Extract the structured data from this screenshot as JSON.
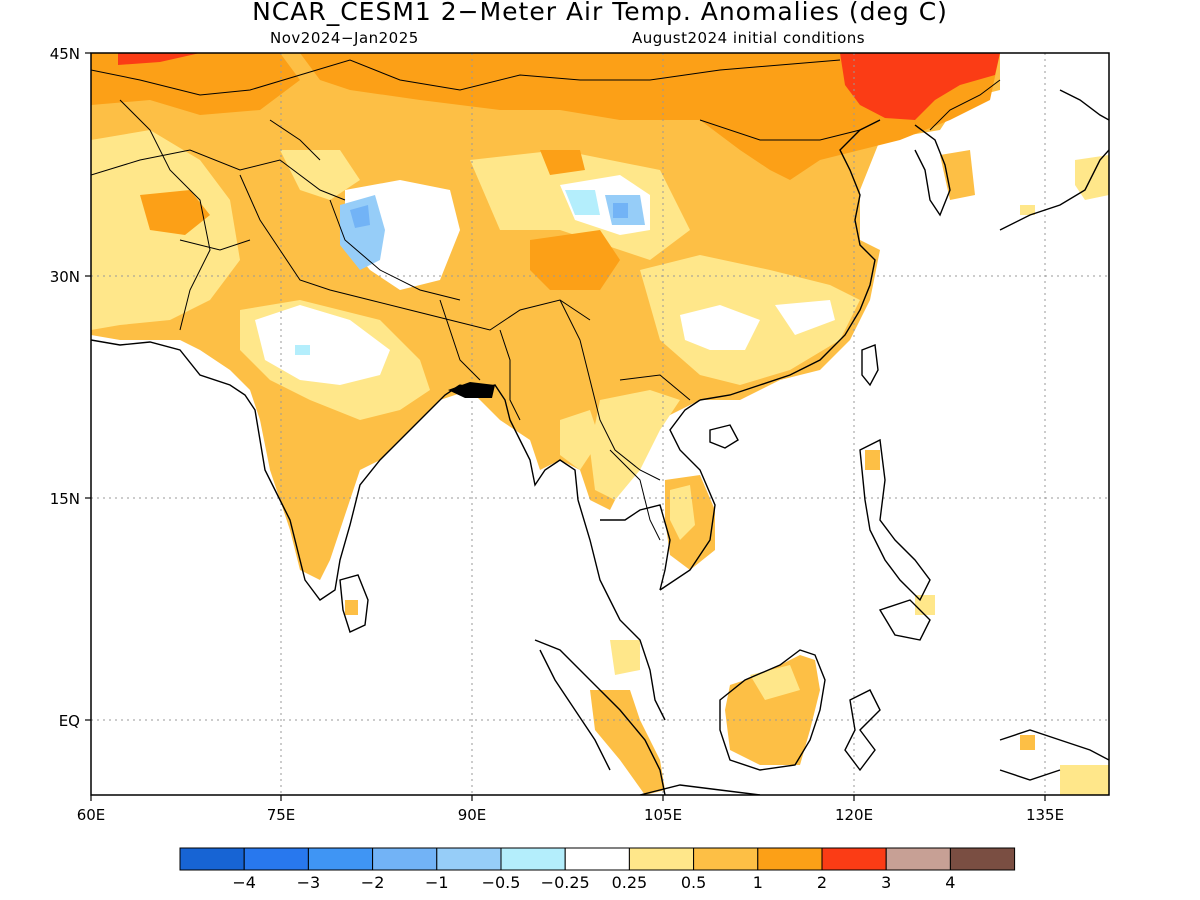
{
  "title": "NCAR_CESM1 2−Meter Air Temp. Anomalies (deg C)",
  "subtitle_left": "Nov2024−Jan2025",
  "subtitle_right": "August2024 initial conditions",
  "map": {
    "lon_range": [
      60,
      140
    ],
    "lat_range": [
      -6,
      45
    ],
    "lon_ticks": [
      "60E",
      "75E",
      "90E",
      "105E",
      "120E",
      "135E"
    ],
    "lat_ticks": [
      "45N",
      "30N",
      "15N",
      "EQ"
    ],
    "grid": true
  },
  "colorbar": {
    "colors": [
      "#1764d4",
      "#2878ee",
      "#3f95f4",
      "#72b3f6",
      "#96cdf8",
      "#b4eefc",
      "#ffffff",
      "#ffe78a",
      "#fdbf45",
      "#fca017",
      "#fb3c15",
      "#c7a095",
      "#7a4e42"
    ],
    "labels": [
      "−4",
      "−3",
      "−2",
      "−1",
      "−0.5",
      "−0.25",
      "0.25",
      "0.5",
      "1",
      "2",
      "3",
      "4"
    ]
  },
  "colors": {
    "anomaly_0_5_1": "#fdbf45",
    "anomaly_0_25_0_5": "#ffe78a",
    "anomaly_1_2": "#fca017",
    "anomaly_2_3": "#fb3c15",
    "anomaly_neg": "#96cdf8"
  }
}
